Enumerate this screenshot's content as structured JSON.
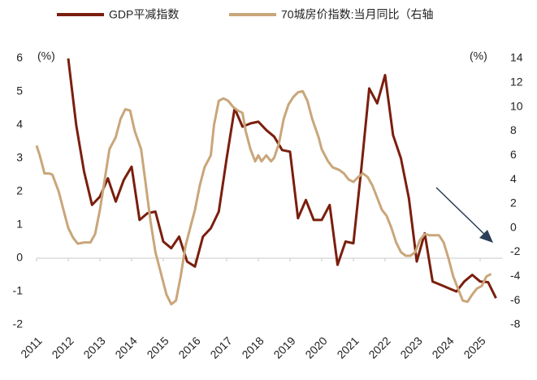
{
  "chart_data": {
    "type": "line",
    "unit_left": "(%)",
    "unit_right": "(%)",
    "xlim": [
      2011,
      2025.7
    ],
    "xticks": [
      2011,
      2012,
      2013,
      2014,
      2015,
      2016,
      2017,
      2018,
      2019,
      2020,
      2021,
      2022,
      2023,
      2024,
      2025
    ],
    "ylim": [
      -2,
      6
    ],
    "yticks": [
      -2,
      -1,
      0,
      1,
      2,
      3,
      4,
      5,
      6
    ],
    "y2lim": [
      -8,
      14
    ],
    "y2ticks": [
      -8,
      -6,
      -4,
      -2,
      0,
      2,
      4,
      6,
      8,
      10,
      12,
      14
    ],
    "grid": false,
    "series": [
      {
        "name": "GDP平减指数",
        "color": "#7b1e0e",
        "axis": "y",
        "x": [
          2012.0,
          2012.25,
          2012.5,
          2012.75,
          2013.0,
          2013.25,
          2013.5,
          2013.75,
          2014.0,
          2014.25,
          2014.5,
          2014.75,
          2015.0,
          2015.25,
          2015.5,
          2015.75,
          2016.0,
          2016.25,
          2016.5,
          2016.75,
          2017.0,
          2017.25,
          2017.5,
          2017.75,
          2018.0,
          2018.25,
          2018.5,
          2018.75,
          2019.0,
          2019.25,
          2019.5,
          2019.75,
          2020.0,
          2020.25,
          2020.5,
          2020.75,
          2021.0,
          2021.25,
          2021.5,
          2021.75,
          2022.0,
          2022.25,
          2022.5,
          2022.75,
          2023.0,
          2023.25,
          2023.5,
          2023.75,
          2024.0,
          2024.25,
          2024.5,
          2024.75,
          2025.0,
          2025.25,
          2025.5
        ],
        "values": [
          6.0,
          4.0,
          2.6,
          1.6,
          1.85,
          2.4,
          1.7,
          2.35,
          2.75,
          1.15,
          1.35,
          1.4,
          0.5,
          0.3,
          0.65,
          -0.1,
          -0.25,
          0.65,
          0.9,
          1.4,
          3.0,
          4.5,
          3.95,
          4.05,
          4.1,
          3.85,
          3.65,
          3.25,
          3.2,
          1.2,
          1.75,
          1.15,
          1.15,
          1.6,
          -0.2,
          0.5,
          0.45,
          2.7,
          5.1,
          4.65,
          5.5,
          3.7,
          3.0,
          1.8,
          -0.1,
          0.75,
          -0.7,
          -0.8,
          -0.9,
          -1.0,
          -0.7,
          -0.5,
          -0.7,
          -0.72,
          -1.2
        ]
      },
      {
        "name": "70城房价指数:当月同比（右轴",
        "color": "#c9a67a",
        "axis": "y2",
        "x": [
          2011.0,
          2011.1,
          2011.25,
          2011.4,
          2011.5,
          2011.7,
          2011.85,
          2012.0,
          2012.15,
          2012.3,
          2012.5,
          2012.7,
          2012.85,
          2013.0,
          2013.15,
          2013.3,
          2013.5,
          2013.65,
          2013.8,
          2013.95,
          2014.1,
          2014.3,
          2014.45,
          2014.6,
          2014.75,
          2014.95,
          2015.1,
          2015.25,
          2015.4,
          2015.55,
          2015.7,
          2015.85,
          2016.0,
          2016.15,
          2016.3,
          2016.5,
          2016.6,
          2016.75,
          2016.9,
          2017.05,
          2017.2,
          2017.35,
          2017.5,
          2017.6,
          2017.75,
          2017.9,
          2018.0,
          2018.1,
          2018.25,
          2018.4,
          2018.5,
          2018.65,
          2018.8,
          2018.95,
          2019.1,
          2019.25,
          2019.4,
          2019.55,
          2019.7,
          2019.9,
          2020.0,
          2020.2,
          2020.35,
          2020.55,
          2020.7,
          2020.85,
          2021.0,
          2021.15,
          2021.3,
          2021.45,
          2021.6,
          2021.75,
          2021.9,
          2022.05,
          2022.2,
          2022.35,
          2022.5,
          2022.65,
          2022.8,
          2022.95,
          2023.1,
          2023.25,
          2023.4,
          2023.55,
          2023.7,
          2023.85,
          2024.0,
          2024.15,
          2024.3,
          2024.45,
          2024.6,
          2024.75,
          2024.9,
          2025.05,
          2025.2,
          2025.35
        ],
        "values": [
          6.8,
          6.0,
          4.5,
          4.5,
          4.4,
          3.0,
          1.5,
          0.0,
          -0.8,
          -1.3,
          -1.2,
          -1.2,
          -0.5,
          1.5,
          4.0,
          6.5,
          7.5,
          9.0,
          9.8,
          9.7,
          8.0,
          6.5,
          3.5,
          0.5,
          -2.0,
          -4.0,
          -5.5,
          -6.3,
          -6.0,
          -4.0,
          -1.5,
          0.0,
          1.5,
          3.5,
          5.0,
          6.0,
          8.5,
          10.5,
          10.7,
          10.5,
          10.0,
          9.7,
          9.5,
          8.0,
          6.5,
          5.5,
          6.0,
          5.5,
          6.0,
          5.5,
          5.8,
          7.0,
          9.0,
          10.2,
          10.8,
          11.2,
          11.3,
          10.5,
          9.0,
          7.5,
          6.5,
          5.5,
          5.0,
          4.8,
          4.5,
          4.0,
          3.8,
          4.2,
          4.5,
          4.2,
          3.5,
          2.5,
          1.5,
          1.0,
          0.0,
          -1.2,
          -2.0,
          -2.3,
          -2.3,
          -2.0,
          -1.0,
          -0.5,
          -0.6,
          -0.6,
          -0.6,
          -1.2,
          -2.5,
          -4.0,
          -5.0,
          -6.0,
          -6.1,
          -5.5,
          -5.0,
          -4.8,
          -4.0,
          -3.8
        ]
      }
    ]
  }
}
